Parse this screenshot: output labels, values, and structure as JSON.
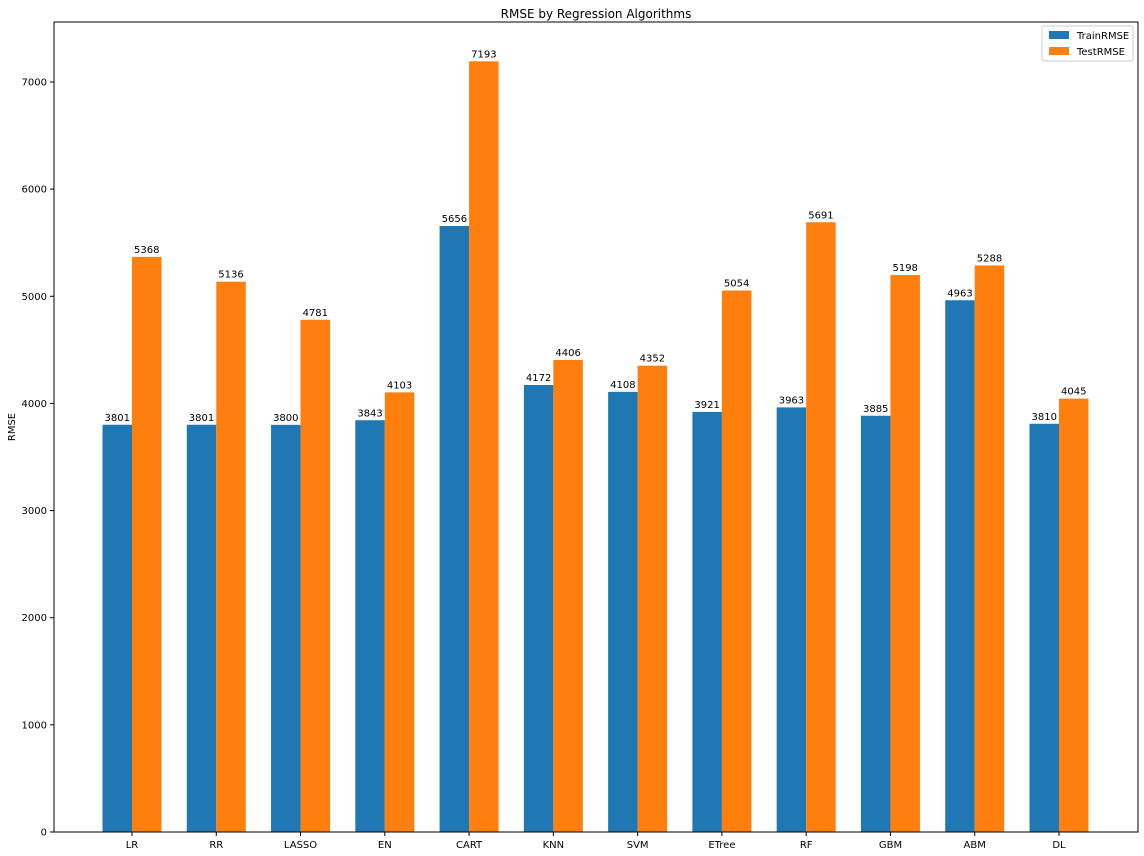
{
  "chart_data": {
    "type": "bar",
    "title": "RMSE by Regression Algorithms",
    "xlabel": "",
    "ylabel": "RMSE",
    "categories": [
      "LR",
      "RR",
      "LASSO",
      "EN",
      "CART",
      "KNN",
      "SVM",
      "ETree",
      "RF",
      "GBM",
      "ABM",
      "DL"
    ],
    "series": [
      {
        "name": "TrainRMSE",
        "color": "#1f77b4",
        "values": [
          3801,
          3801,
          3800,
          3843,
          5656,
          4172,
          4108,
          3921,
          3963,
          3885,
          4963,
          3810
        ]
      },
      {
        "name": "TestRMSE",
        "color": "#ff7f0e",
        "values": [
          5368,
          5136,
          4781,
          4103,
          7193,
          4406,
          4352,
          5054,
          5691,
          5198,
          5288,
          4045
        ]
      }
    ],
    "ylim": [
      0,
      7560
    ],
    "yticks": [
      0,
      1000,
      2000,
      3000,
      4000,
      5000,
      6000,
      7000
    ],
    "grid": false,
    "legend_position": "top-right",
    "data_labels": true
  }
}
